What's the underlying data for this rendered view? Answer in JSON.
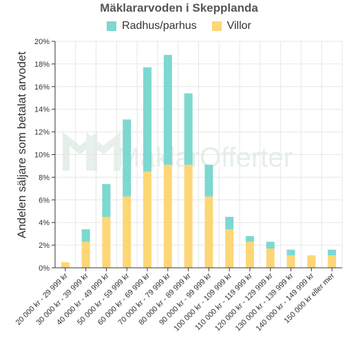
{
  "chart_data": {
    "type": "bar",
    "stacked": true,
    "title": "Mäklararvoden i Skepplanda",
    "ylabel": "Andelen säljare som betalat arvodet",
    "xlabel": "",
    "ylim": [
      0,
      20
    ],
    "yticks": [
      0,
      2,
      4,
      6,
      8,
      10,
      12,
      14,
      16,
      18,
      20
    ],
    "ytick_suffix": "%",
    "grid": true,
    "legend_position": "top",
    "categories": [
      "20 000 kr - 29 999 kr",
      "30 000 kr - 39 999 kr",
      "40 000 kr - 49 999 kr",
      "50 000 kr - 59 999 kr",
      "60 000 kr - 69 999 kr",
      "70 000 kr - 79 999 kr",
      "80 000 kr - 89 999 kr",
      "90 000 kr - 99 999 kr",
      "100 000 kr - 109 999 kr",
      "110 000 kr - 119 999 kr",
      "120 000 kr - 129 999 kr",
      "130 000 kr - 139 999 kr",
      "140 000 kr - 149 999 kr",
      "150 000 kr eller mer"
    ],
    "series": [
      {
        "name": "Villor",
        "color": "#fdd677",
        "values": [
          0.5,
          2.3,
          4.5,
          6.3,
          8.5,
          9.1,
          9.1,
          6.3,
          3.4,
          2.3,
          1.7,
          1.1,
          1.1,
          1.1
        ]
      },
      {
        "name": "Radhus/parhus",
        "color": "#7dd8d0",
        "values": [
          0,
          1.1,
          2.9,
          6.8,
          9.2,
          9.7,
          6.3,
          2.8,
          1.1,
          0.5,
          0.6,
          0.5,
          0,
          0.5
        ]
      }
    ],
    "legend_order": [
      "Radhus/parhus",
      "Villor"
    ]
  },
  "watermark": {
    "text": "MäklarOfferter"
  },
  "colors": {
    "grid": "#e6e6e6",
    "axis": "#333333",
    "background": "#ffffff"
  }
}
